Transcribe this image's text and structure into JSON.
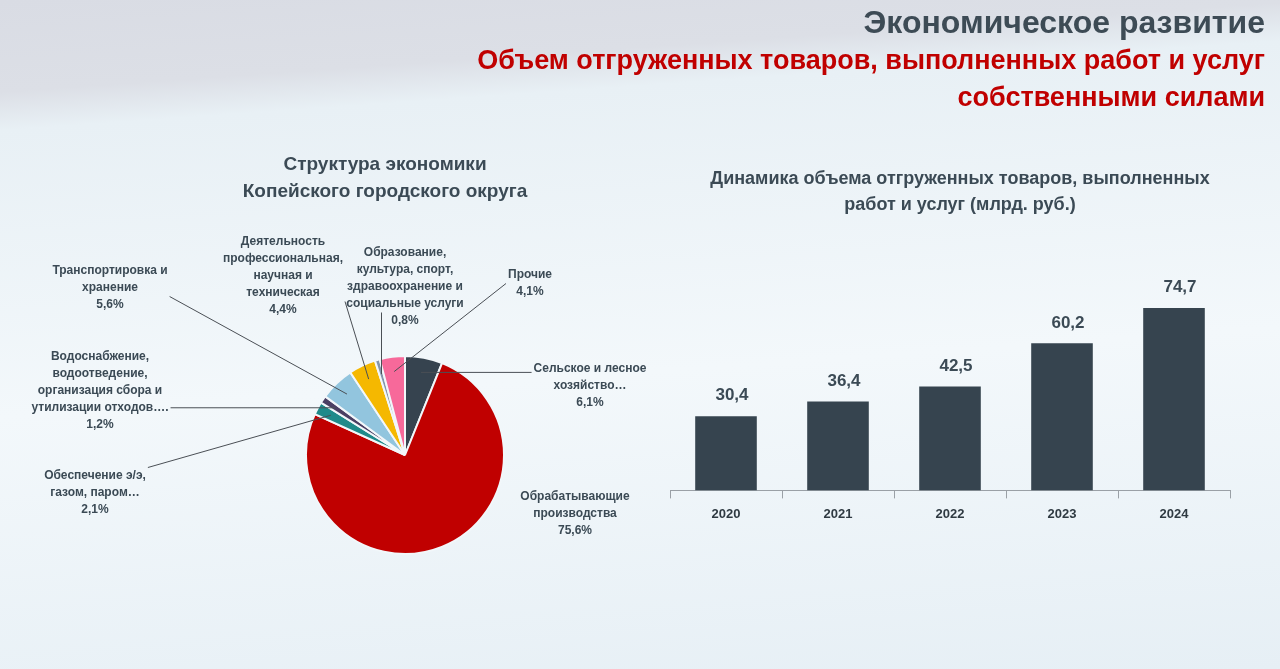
{
  "chart_data": [
    {
      "type": "other",
      "title": "Экономическое развитие",
      "subtitle": "Объем отгруженных товаров, выполненных работ и услуг собственными силами"
    },
    {
      "type": "pie",
      "title": "Структура экономики Копейского городского округа",
      "categories": [
        "Сельское и лесное хозяйство…",
        "Обрабатывающие производства",
        "Обеспечение э/э, газом, паром…",
        "Водоснабжение, водоотведение, организация сбора и утилизации отходов….",
        "Транспортировка и хранение",
        "Деятельность профессиональная, научная и техническая",
        "Образование, культура, спорт, здравоохранение и социальные услуги",
        "Прочие"
      ],
      "values": [
        6.1,
        75.6,
        2.1,
        1.2,
        5.6,
        4.4,
        0.8,
        4.1
      ],
      "colors": [
        "#36434f",
        "#c00000",
        "#1f8a8a",
        "#4b3f63",
        "#92c5de",
        "#f5b800",
        "#8496ab",
        "#f7699a"
      ],
      "value_labels": [
        "6,1%",
        "75,6%",
        "2,1%",
        "1,2%",
        "5,6%",
        "4,4%",
        "0,8%",
        "4,1%"
      ]
    },
    {
      "type": "bar",
      "title": "Динамика объема отгруженных товаров, выполненных работ и услуг (млрд. руб.)",
      "categories": [
        "2020",
        "2021",
        "2022",
        "2023",
        "2024"
      ],
      "values": [
        30.4,
        36.4,
        42.5,
        60.2,
        74.7
      ],
      "color": "#36444f",
      "value_labels": [
        "30,4",
        "36,4",
        "42,5",
        "60,2",
        "74,7"
      ],
      "tick_labels": "x"
    }
  ]
}
